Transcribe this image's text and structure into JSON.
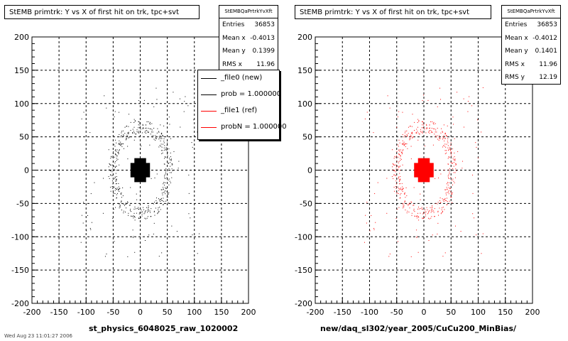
{
  "footer_text": "Wed Aug 23 11:01:27 2006",
  "legend": {
    "items": [
      {
        "label": "_file0 (new)",
        "color": "#000000"
      },
      {
        "label": "prob = 1.000000",
        "color": "#000000"
      },
      {
        "label": "_file1 (ref)",
        "color": "#ff0000"
      },
      {
        "label": "probN = 1.000000",
        "color": "#ff0000"
      }
    ]
  },
  "panels": [
    {
      "title": "StEMB primtrk: Y vs X of first hit on trk, tpc+svt",
      "xtitle": "st_physics_6048025_raw_1020002",
      "stats": {
        "name": "StEMBQaPrtrkYvXft",
        "rows": [
          {
            "label": "Entries",
            "value": "36853"
          },
          {
            "label": "Mean x",
            "value": "-0.4013"
          },
          {
            "label": "Mean y",
            "value": "0.1399"
          },
          {
            "label": "RMS x",
            "value": "11.96"
          }
        ]
      },
      "color": "#000000"
    },
    {
      "title": "StEMB primtrk: Y vs X of first hit on trk, tpc+svt",
      "xtitle": "new/daq_sl302/year_2005/CuCu200_MinBias/",
      "stats": {
        "name": "StEMBQaPrtrkYvXft",
        "rows": [
          {
            "label": "Entries",
            "value": "36853"
          },
          {
            "label": "Mean x",
            "value": "-0.4012"
          },
          {
            "label": "Mean y",
            "value": "0.1401"
          },
          {
            "label": "RMS x",
            "value": "11.96"
          },
          {
            "label": "RMS y",
            "value": "12.19"
          }
        ]
      },
      "color": "#ff0000"
    }
  ],
  "chart_data": [
    {
      "type": "scatter",
      "xlim": [
        -200,
        200
      ],
      "ylim": [
        -200,
        200
      ],
      "xticks": [
        -200,
        -150,
        -100,
        -50,
        0,
        50,
        100,
        150,
        200
      ],
      "yticks": [
        -200,
        -150,
        -100,
        -50,
        0,
        50,
        100,
        150,
        200
      ],
      "grid": true,
      "clusters": [
        {
          "shape": "core",
          "center": [
            0,
            0
          ],
          "half_width": 18
        },
        {
          "shape": "ring",
          "center": [
            0,
            0
          ],
          "radius": 68
        }
      ]
    },
    {
      "type": "scatter",
      "xlim": [
        -200,
        200
      ],
      "ylim": [
        -200,
        200
      ],
      "xticks": [
        -200,
        -150,
        -100,
        -50,
        0,
        50,
        100,
        150,
        200
      ],
      "yticks": [
        -200,
        -150,
        -100,
        -50,
        0,
        50,
        100,
        150,
        200
      ],
      "grid": true,
      "clusters": [
        {
          "shape": "core",
          "center": [
            0,
            0
          ],
          "half_width": 18
        },
        {
          "shape": "ring",
          "center": [
            0,
            0
          ],
          "radius": 68
        }
      ]
    }
  ]
}
